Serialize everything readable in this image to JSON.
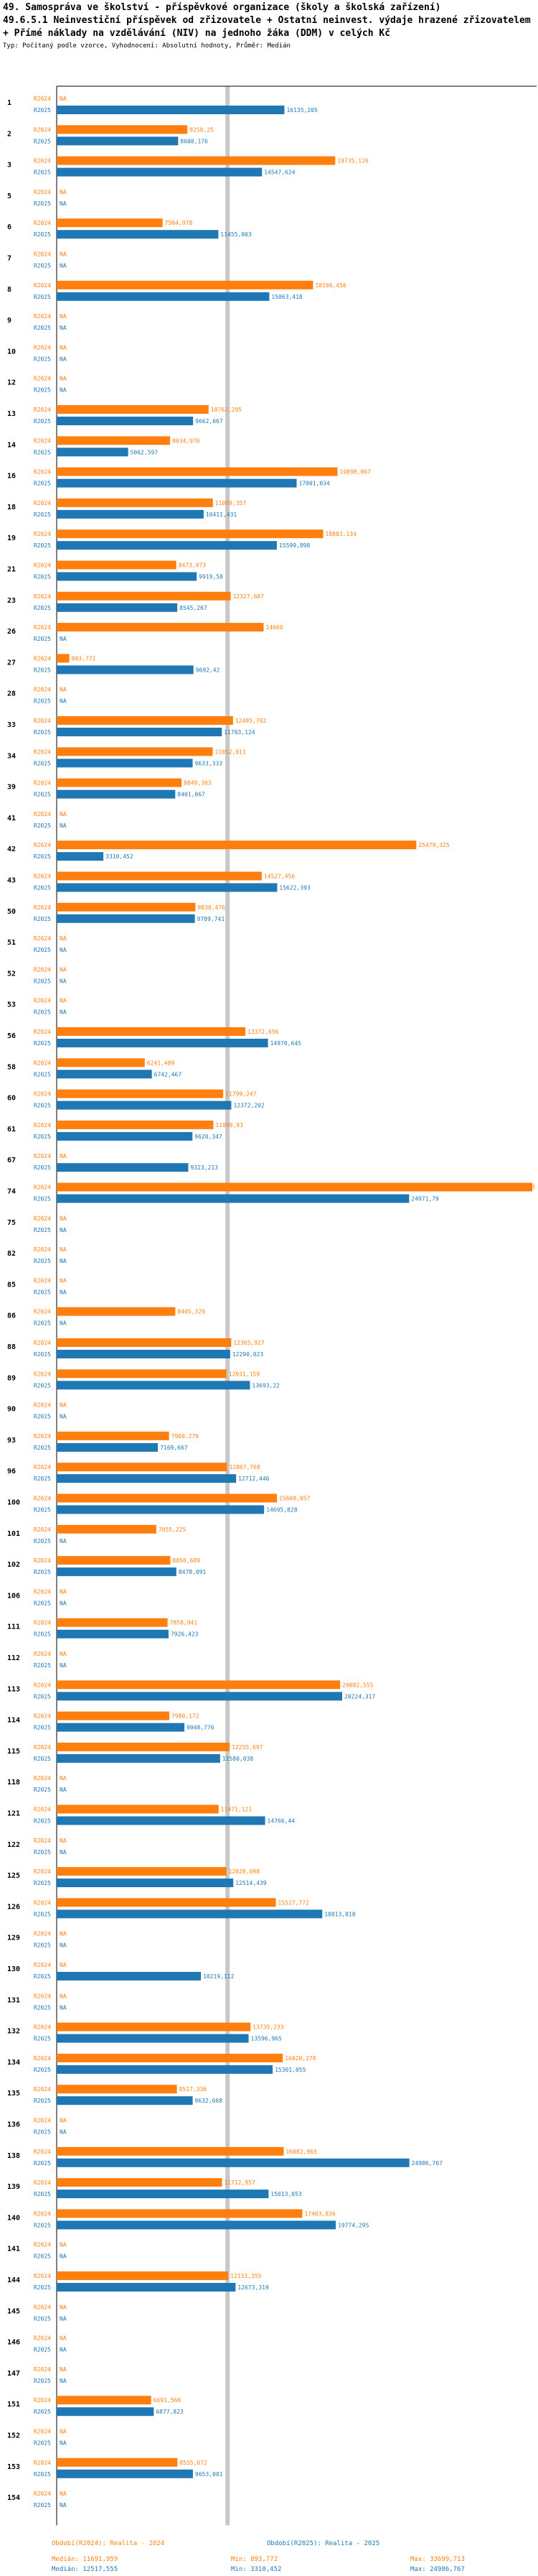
{
  "title_line1": "49. Samospráva ve školství - příspěvkové organizace (školy a školská zařízení)",
  "title_line2": "49.6.5.1 Neinvestiční příspěvek od zřizovatele + Ostatní neinvest. výdaje hrazené zřizovatelem + Přímé náklady na vzdělávání (NIV) na jednoho žáka (DDM) v celých Kč",
  "subtitle": "Typ: Počítaný podle vzorce, Vyhodnocení: Absolutní hodnoty, Průměr: Medián",
  "chart_data": {
    "type": "bar",
    "orientation": "horizontal",
    "xlim": [
      0,
      34000
    ],
    "na_label": "NA",
    "median_2024": 11691.959,
    "median_2025": 12517.555,
    "series_labels": [
      "R2024",
      "R2025"
    ],
    "series_colors": [
      "#ff7f0e",
      "#1f77b4"
    ],
    "categories": [
      "1",
      "2",
      "3",
      "5",
      "6",
      "7",
      "8",
      "9",
      "10",
      "12",
      "13",
      "14",
      "16",
      "18",
      "19",
      "21",
      "23",
      "26",
      "27",
      "28",
      "33",
      "34",
      "39",
      "41",
      "42",
      "43",
      "50",
      "51",
      "52",
      "53",
      "56",
      "58",
      "60",
      "61",
      "67",
      "74",
      "75",
      "82",
      "85",
      "86",
      "88",
      "89",
      "90",
      "93",
      "96",
      "100",
      "101",
      "102",
      "106",
      "111",
      "112",
      "113",
      "114",
      "115",
      "118",
      "121",
      "122",
      "125",
      "126",
      "129",
      "130",
      "131",
      "132",
      "134",
      "135",
      "136",
      "138",
      "139",
      "140",
      "141",
      "144",
      "145",
      "146",
      "147",
      "151",
      "152",
      "153",
      "154"
    ],
    "series": [
      {
        "name": "R2024",
        "values": [
          null,
          9258.25,
          19735.126,
          null,
          7504.978,
          null,
          18166.456,
          null,
          null,
          null,
          10762.295,
          8034.976,
          19898.067,
          11069.357,
          18883.134,
          8473.073,
          12327.607,
          14660,
          893.772,
          null,
          12495.702,
          11052.811,
          8849.303,
          null,
          25479.325,
          14527.456,
          9830.476,
          null,
          null,
          null,
          13372.656,
          6241.489,
          11799.247,
          11099.93,
          null,
          33699.713,
          null,
          null,
          null,
          8405.329,
          12365.927,
          12031.159,
          null,
          7960.276,
          12067.768,
          15608.057,
          7055.225,
          8050.689,
          null,
          7858.941,
          null,
          20082.555,
          7980.172,
          12255.697,
          null,
          11471.121,
          null,
          12028.098,
          15527.772,
          null,
          null,
          null,
          13735.233,
          16020.278,
          8517.336,
          null,
          16082.965,
          11712.957,
          17403.836,
          null,
          12153.355,
          null,
          null,
          null,
          6691.566,
          null,
          8555.072,
          null
        ]
      },
      {
        "name": "R2025",
        "values": [
          16135.205,
          8608.176,
          14547.624,
          null,
          11455.003,
          null,
          15063.418,
          null,
          null,
          null,
          9662.667,
          5062.597,
          17001.034,
          10411.431,
          15599.898,
          9919.58,
          8545.267,
          null,
          9692.42,
          null,
          11703.124,
          9633.333,
          8401.067,
          null,
          3310.452,
          15622.393,
          9789.741,
          null,
          null,
          null,
          14970.645,
          6742.467,
          12372.202,
          9620.347,
          9323.213,
          24971.79,
          null,
          null,
          null,
          null,
          12290.023,
          13693.22,
          null,
          7169.667,
          12712.446,
          14695.828,
          null,
          8478.091,
          null,
          7926.423,
          null,
          20224.317,
          9048.776,
          11580.038,
          null,
          14766.44,
          null,
          12514.439,
          18813.818,
          null,
          10219.112,
          null,
          13596.965,
          15301.055,
          9632.668,
          null,
          24986.767,
          15013.053,
          19774.295,
          null,
          12673.319,
          null,
          null,
          null,
          6877.823,
          null,
          9653.001,
          null
        ]
      }
    ]
  },
  "footer": {
    "title_2024": "Období(R2024): Realita - 2024",
    "title_2025": "Období(R2025): Realita - 2025",
    "median_2024": "Medián: 11691,959",
    "min_2024": "Min: 893,772",
    "max_2024": "Max: 33699,713",
    "median_2025": "Medián: 12517,555",
    "min_2025": "Min: 3310,452",
    "max_2025": "Max: 24986,767"
  }
}
